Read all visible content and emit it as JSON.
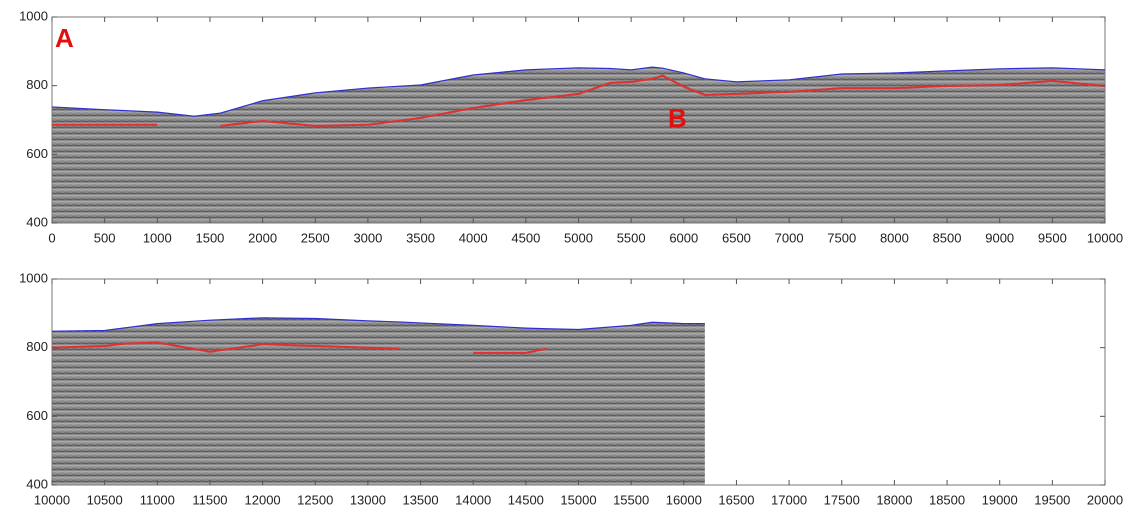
{
  "chart_data": [
    {
      "type": "line",
      "x": [
        0,
        500,
        1000,
        1350,
        1600,
        2000,
        2500,
        3000,
        3500,
        4000,
        4500,
        5000,
        5300,
        5500,
        5700,
        5800,
        6000,
        6200,
        6500,
        7000,
        7500,
        8000,
        8500,
        9000,
        9500,
        10000
      ],
      "series": [
        {
          "color": "#3030d0",
          "values": [
            738,
            730,
            723,
            711,
            720,
            756,
            779,
            793,
            802,
            831,
            846,
            852,
            850,
            846,
            854,
            851,
            837,
            820,
            811,
            817,
            834,
            837,
            843,
            849,
            852,
            846
          ]
        },
        {
          "color": "#e03030",
          "values": [
            686,
            686,
            686,
            null,
            683,
            697,
            683,
            686,
            706,
            735,
            758,
            776,
            808,
            811,
            820,
            829,
            797,
            773,
            776,
            782,
            793,
            793,
            799,
            802,
            814,
            799
          ]
        }
      ],
      "xlim": [
        0,
        10000
      ],
      "ylim": [
        400,
        1000
      ],
      "xticks": [
        0,
        500,
        1000,
        1500,
        2000,
        2500,
        3000,
        3500,
        4000,
        4500,
        5000,
        5500,
        6000,
        6500,
        7000,
        7500,
        8000,
        8500,
        9000,
        9500,
        10000
      ],
      "yticks": [
        400,
        600,
        800,
        1000
      ],
      "annotations": [
        "A",
        "B"
      ]
    },
    {
      "type": "line",
      "x": [
        10000,
        10500,
        10700,
        11000,
        11500,
        12000,
        12500,
        13000,
        13300,
        13500,
        14000,
        14500,
        14700,
        15000,
        15500,
        15700,
        16000,
        16200
      ],
      "series": [
        {
          "color": "#3030d0",
          "values": [
            848,
            850,
            858,
            870,
            880,
            887,
            885,
            878,
            875,
            872,
            865,
            857,
            855,
            853,
            865,
            874,
            870,
            870
          ]
        },
        {
          "color": "#e03030",
          "values": [
            800,
            805,
            812,
            815,
            788,
            810,
            805,
            800,
            797,
            null,
            785,
            785,
            797,
            null,
            null,
            null,
            null,
            null
          ]
        }
      ],
      "xlim": [
        10000,
        20000
      ],
      "ylim": [
        400,
        1000
      ],
      "xticks": [
        10000,
        10500,
        11000,
        11500,
        12000,
        12500,
        13000,
        13500,
        14000,
        14500,
        15000,
        15500,
        16000,
        16500,
        17000,
        17500,
        18000,
        18500,
        19000,
        19500,
        20000
      ],
      "yticks": [
        400,
        600,
        800,
        1000
      ]
    }
  ]
}
